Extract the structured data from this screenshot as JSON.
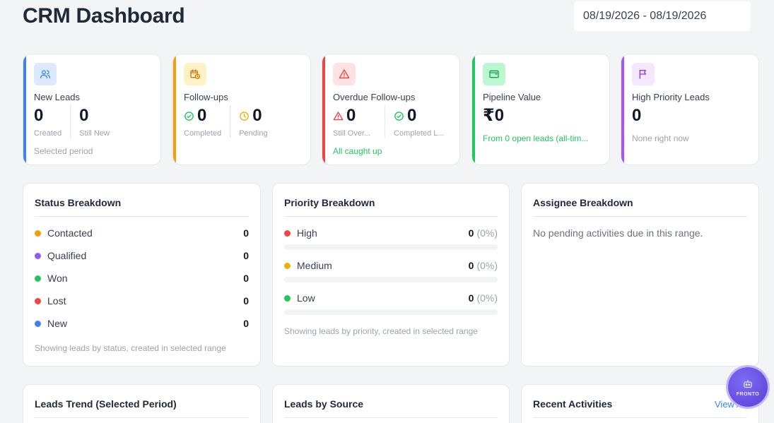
{
  "header": {
    "title": "CRM Dashboard",
    "date_range": "08/19/2026 - 08/19/2026"
  },
  "kpis": {
    "new_leads": {
      "title": "New Leads",
      "created_value": "0",
      "created_label": "Created",
      "still_new_value": "0",
      "still_new_label": "Still New",
      "footer": "Selected period",
      "accent": "#3b82f6",
      "icon": "users-icon"
    },
    "followups": {
      "title": "Follow-ups",
      "completed_value": "0",
      "completed_label": "Completed",
      "pending_value": "0",
      "pending_label": "Pending",
      "accent": "#f59e0b",
      "icon": "calendar-clock-icon"
    },
    "overdue": {
      "title": "Overdue Follow-ups",
      "still_overdue_value": "0",
      "still_overdue_label": "Still Over...",
      "completed_late_value": "0",
      "completed_late_label": "Completed L...",
      "footer": "All caught up",
      "accent": "#ef4444",
      "icon": "alert-triangle-icon"
    },
    "pipeline": {
      "title": "Pipeline Value",
      "value": "₹0",
      "footer": "From 0 open leads (all-tim...",
      "accent": "#22c55e",
      "icon": "wallet-icon"
    },
    "high_priority": {
      "title": "High Priority Leads",
      "value": "0",
      "footer": "None right now",
      "accent": "#a855f7",
      "icon": "flag-icon"
    }
  },
  "status_breakdown": {
    "title": "Status Breakdown",
    "items": [
      {
        "label": "Contacted",
        "value": "0",
        "color": "#f59e0b"
      },
      {
        "label": "Qualified",
        "value": "0",
        "color": "#8b5cf6"
      },
      {
        "label": "Won",
        "value": "0",
        "color": "#22c55e"
      },
      {
        "label": "Lost",
        "value": "0",
        "color": "#ef4444"
      },
      {
        "label": "New",
        "value": "0",
        "color": "#3b82f6"
      }
    ],
    "note": "Showing leads by status, created in selected range"
  },
  "priority_breakdown": {
    "title": "Priority Breakdown",
    "items": [
      {
        "label": "High",
        "value": "0",
        "pct": "(0%)",
        "color": "#ef4444",
        "fraction": 0
      },
      {
        "label": "Medium",
        "value": "0",
        "pct": "(0%)",
        "color": "#eab308",
        "fraction": 0
      },
      {
        "label": "Low",
        "value": "0",
        "pct": "(0%)",
        "color": "#22c55e",
        "fraction": 0
      }
    ],
    "note": "Showing leads by priority, created in selected range"
  },
  "assignee_breakdown": {
    "title": "Assignee Breakdown",
    "empty": "No pending activities due in this range."
  },
  "leads_trend": {
    "title": "Leads Trend (Selected Period)"
  },
  "leads_source": {
    "title": "Leads by Source"
  },
  "recent_activities": {
    "title": "Recent Activities",
    "view_all": "View All"
  },
  "fab": {
    "label": "FRONTO"
  }
}
